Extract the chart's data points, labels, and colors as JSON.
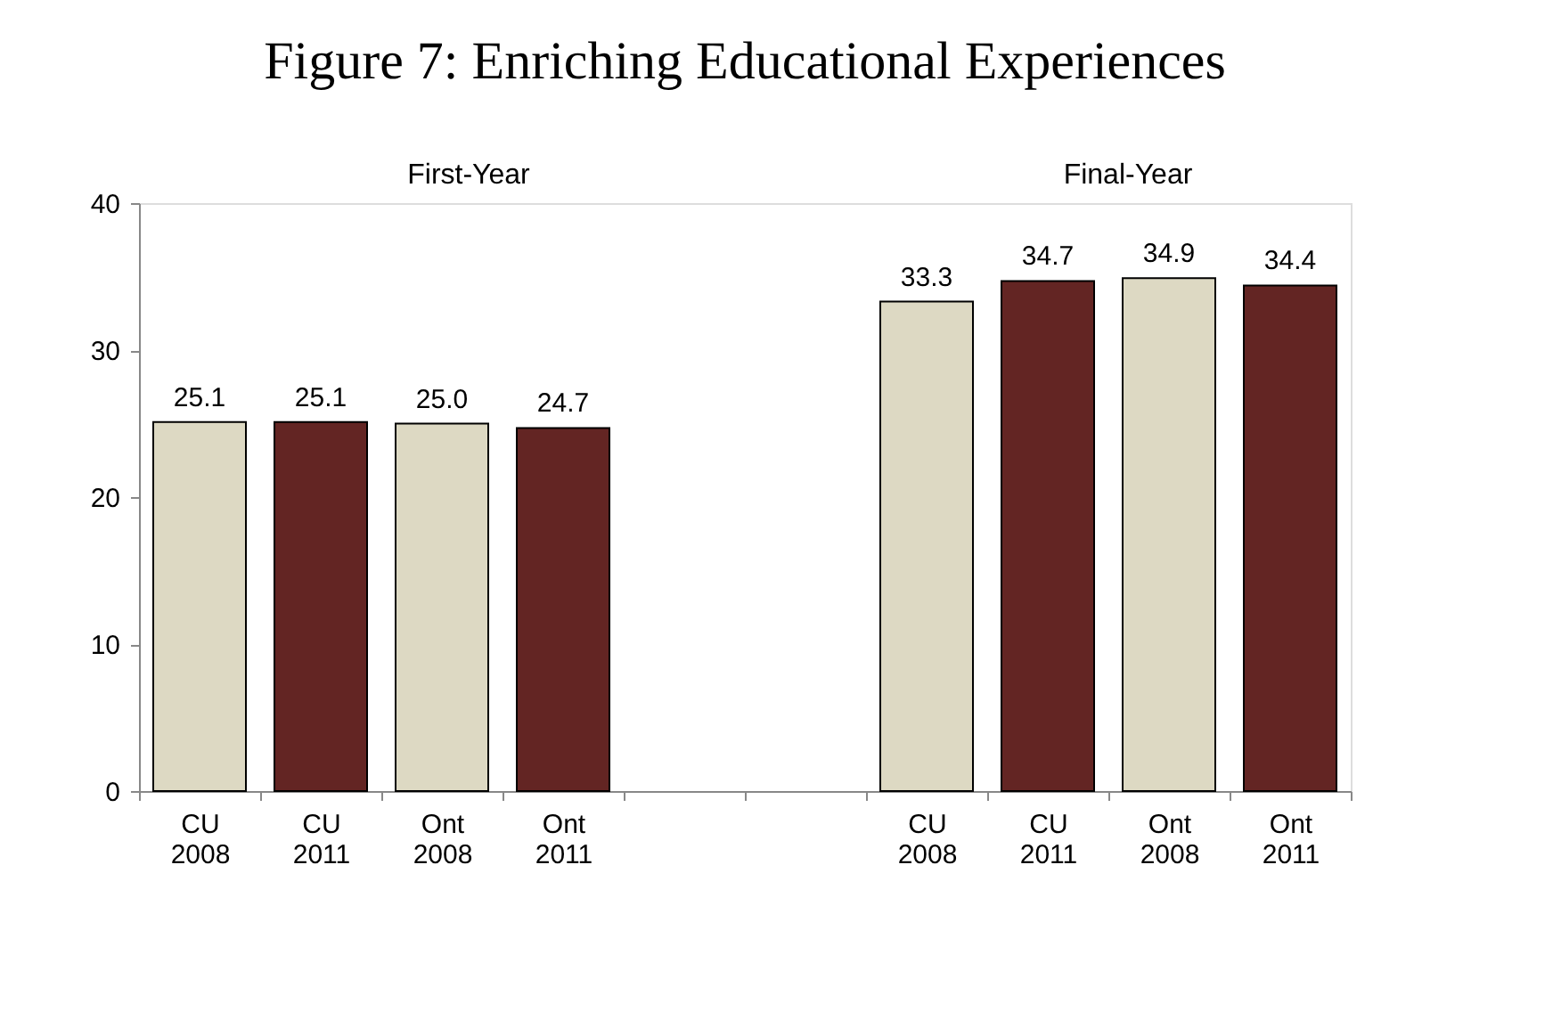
{
  "chart_data": {
    "type": "bar",
    "title": "Figure 7: Enriching Educational Experiences",
    "categories": [
      "CU 2008",
      "CU 2011",
      "Ont 2008",
      "Ont 2011",
      null,
      null,
      "CU 2008",
      "CU 2011",
      "Ont 2008",
      "Ont 2011"
    ],
    "values": [
      25.1,
      25.1,
      25.0,
      24.7,
      null,
      null,
      33.3,
      34.7,
      34.9,
      34.4
    ],
    "colors": [
      "#ddd9c3",
      "#632523",
      "#ddd9c3",
      "#632523",
      null,
      null,
      "#ddd9c3",
      "#632523",
      "#ddd9c3",
      "#632523"
    ],
    "value_labels": [
      "25.1",
      "25.1",
      "25.0",
      "24.7",
      null,
      null,
      "33.3",
      "34.7",
      "34.9",
      "34.4"
    ],
    "annotations": [
      "First-Year",
      "Final-Year"
    ],
    "ylim": [
      0,
      40
    ],
    "yticks": [
      0,
      10,
      20,
      30,
      40
    ],
    "grid": false
  }
}
